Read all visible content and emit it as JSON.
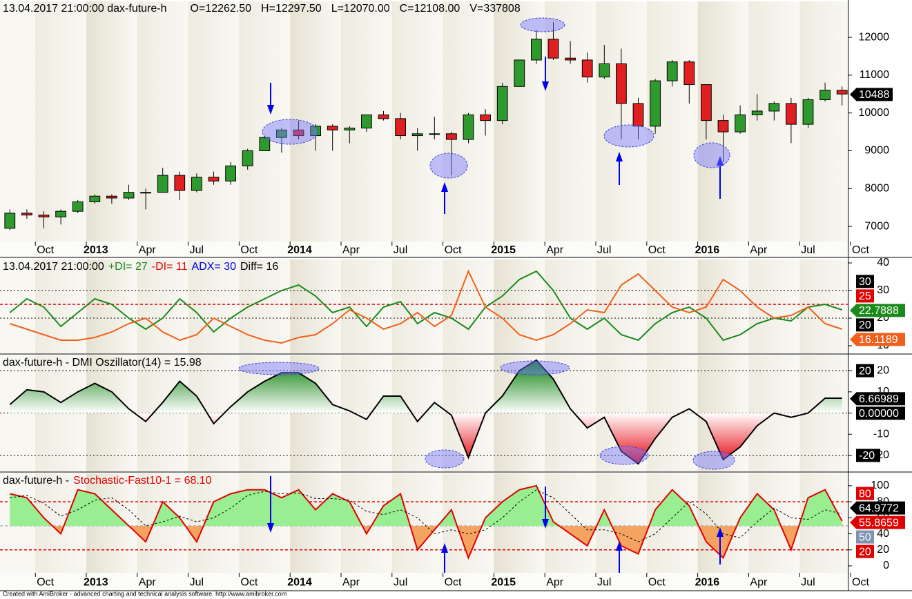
{
  "footer": "Created with AmiBroker - advanced charting and technical analysis software. http://www.amibroker.com",
  "chart_data": [
    {
      "type": "candlestick",
      "title": "13.04.2017 21:00:00 dax-future-h",
      "annotations": [
        "O=12262.50",
        "H=12297.50",
        "L=12070.00",
        "C=12108.00",
        "V=337808"
      ],
      "x": [
        "2012-08",
        "2012-09",
        "2012-10",
        "2012-11",
        "2012-12",
        "2013-01",
        "2013-02",
        "2013-03",
        "2013-04",
        "2013-05",
        "2013-06",
        "2013-07",
        "2013-08",
        "2013-09",
        "2013-10",
        "2013-11",
        "2013-12",
        "2014-01",
        "2014-02",
        "2014-03",
        "2014-04",
        "2014-05",
        "2014-06",
        "2014-07",
        "2014-08",
        "2014-09",
        "2014-10",
        "2014-11",
        "2014-12",
        "2015-01",
        "2015-02",
        "2015-03",
        "2015-04",
        "2015-05",
        "2015-06",
        "2015-07",
        "2015-08",
        "2015-09",
        "2015-10",
        "2015-11",
        "2015-12",
        "2016-01",
        "2016-02",
        "2016-03",
        "2016-04",
        "2016-05",
        "2016-06",
        "2016-07",
        "2016-08",
        "2016-09"
      ],
      "open": [
        6950,
        7350,
        7300,
        7250,
        7400,
        7650,
        7800,
        7750,
        7900,
        7900,
        8350,
        7950,
        8300,
        8200,
        8600,
        9000,
        9350,
        9550,
        9400,
        9650,
        9550,
        9600,
        9950,
        9850,
        9400,
        9450,
        9450,
        9300,
        9950,
        9800,
        10700,
        11400,
        11950,
        11450,
        11400,
        10950,
        11300,
        10250,
        9650,
        10850,
        11350,
        10750,
        9800,
        9500,
        9950,
        10050,
        10250,
        9700,
        10350,
        10600
      ],
      "high": [
        7450,
        7450,
        7400,
        7450,
        7700,
        7850,
        7850,
        8100,
        8000,
        8550,
        8450,
        8400,
        8450,
        8700,
        9050,
        9400,
        9600,
        9800,
        9700,
        9700,
        9650,
        9950,
        10050,
        10000,
        9600,
        9900,
        9500,
        10000,
        10100,
        10800,
        11400,
        12200,
        12400,
        11900,
        11600,
        11800,
        11700,
        10400,
        10900,
        11400,
        11400,
        10750,
        9950,
        10200,
        10500,
        10300,
        10400,
        10400,
        10800,
        10700
      ],
      "low": [
        6900,
        7200,
        6950,
        7050,
        7350,
        7600,
        7600,
        7700,
        7450,
        7900,
        7700,
        7900,
        8100,
        8100,
        8500,
        9000,
        8950,
        9300,
        9000,
        9000,
        9200,
        9500,
        9800,
        9300,
        9000,
        9300,
        8350,
        9200,
        9400,
        9700,
        10700,
        11300,
        11400,
        11300,
        10800,
        10900,
        9300,
        9300,
        9450,
        10700,
        10250,
        9300,
        8700,
        9450,
        9800,
        9800,
        9200,
        9600,
        10300,
        10200
      ],
      "close": [
        7350,
        7300,
        7250,
        7400,
        7650,
        7800,
        7750,
        7900,
        7900,
        8350,
        7950,
        8300,
        8200,
        8600,
        9000,
        9350,
        9550,
        9400,
        9650,
        9550,
        9600,
        9950,
        9850,
        9400,
        9450,
        9450,
        9300,
        9950,
        9800,
        10700,
        11400,
        11950,
        11450,
        11400,
        10950,
        11300,
        10250,
        9650,
        10850,
        11350,
        10750,
        9800,
        9500,
        9950,
        10050,
        10250,
        9700,
        10350,
        10600,
        10500
      ],
      "up_color": "#2e9a2e",
      "down_color": "#e02020",
      "xlim": [
        "2012-08",
        "2016-10"
      ],
      "xticks": [
        {
          "value": "2012-10",
          "label": "Oct"
        },
        {
          "value": "2013-01",
          "label": "2013"
        },
        {
          "value": "2013-04",
          "label": "Apr"
        },
        {
          "value": "2013-07",
          "label": "Jul"
        },
        {
          "value": "2013-10",
          "label": "Oct"
        },
        {
          "value": "2014-01",
          "label": "2014"
        },
        {
          "value": "2014-04",
          "label": "Apr"
        },
        {
          "value": "2014-07",
          "label": "Jul"
        },
        {
          "value": "2014-10",
          "label": "Oct"
        },
        {
          "value": "2015-01",
          "label": "2015"
        },
        {
          "value": "2015-04",
          "label": "Apr"
        },
        {
          "value": "2015-07",
          "label": "Jul"
        },
        {
          "value": "2015-10",
          "label": "Oct"
        },
        {
          "value": "2016-01",
          "label": "2016"
        },
        {
          "value": "2016-04",
          "label": "Apr"
        },
        {
          "value": "2016-07",
          "label": "Jul"
        },
        {
          "value": "2016-10",
          "label": "Oct"
        }
      ],
      "ylim": [
        6600,
        12950
      ],
      "yticks": [
        7000,
        8000,
        9000,
        10000,
        11000,
        12000
      ],
      "last_values": [
        10488
      ],
      "last_value_colors": [
        "#000000"
      ]
    },
    {
      "type": "line",
      "title": "13.04.2017 21:00:00",
      "legend": [
        "+DI= 27",
        "-DI= 11",
        "ADX= 30",
        "Diff= 16"
      ],
      "legend_colors": [
        "#1a8a1a",
        "#e00000",
        "#0000e0",
        "#000000"
      ],
      "x": [
        "2012-08",
        "2012-09",
        "2012-10",
        "2012-11",
        "2012-12",
        "2013-01",
        "2013-02",
        "2013-03",
        "2013-04",
        "2013-05",
        "2013-06",
        "2013-07",
        "2013-08",
        "2013-09",
        "2013-10",
        "2013-11",
        "2013-12",
        "2014-01",
        "2014-02",
        "2014-03",
        "2014-04",
        "2014-05",
        "2014-06",
        "2014-07",
        "2014-08",
        "2014-09",
        "2014-10",
        "2014-11",
        "2014-12",
        "2015-01",
        "2015-02",
        "2015-03",
        "2015-04",
        "2015-05",
        "2015-06",
        "2015-07",
        "2015-08",
        "2015-09",
        "2015-10",
        "2015-11",
        "2015-12",
        "2016-01",
        "2016-02",
        "2016-03",
        "2016-04",
        "2016-05",
        "2016-06",
        "2016-07",
        "2016-08",
        "2016-09"
      ],
      "xlim": [
        "2012-08",
        "2016-10"
      ],
      "series": [
        {
          "color": "#1a8a1a",
          "values": [
            22,
            27,
            24,
            17,
            22,
            27,
            25,
            20,
            16,
            20,
            27,
            22,
            15,
            20,
            24,
            27,
            30,
            32,
            28,
            22,
            24,
            17,
            24,
            26,
            18,
            22,
            20,
            16,
            24,
            28,
            34,
            37,
            30,
            20,
            16,
            20,
            14,
            12,
            18,
            22,
            24,
            20,
            12,
            14,
            18,
            20,
            19,
            24,
            25,
            23
          ]
        },
        {
          "color": "#f0601c",
          "values": [
            18,
            16,
            14,
            12,
            12,
            13,
            15,
            18,
            20,
            15,
            12,
            14,
            20,
            17,
            14,
            12,
            11,
            13,
            14,
            18,
            23,
            20,
            16,
            18,
            22,
            17,
            21,
            37,
            24,
            20,
            14,
            12,
            14,
            18,
            23,
            22,
            32,
            36,
            30,
            24,
            22,
            24,
            34,
            30,
            24,
            20,
            21,
            24,
            18,
            16
          ]
        }
      ],
      "ylim": [
        7.25,
        41.25
      ],
      "yticks": [
        10,
        20,
        30,
        40
      ],
      "levels": [
        30,
        25,
        20
      ],
      "level_colors": [
        "#000000",
        "#e00000",
        "#000000"
      ],
      "last_values": [
        22.7888,
        16.1189
      ],
      "last_value_colors": [
        "#1a8a1a",
        "#f0601c"
      ]
    },
    {
      "type": "area",
      "title": "dax-future-h - DMI Oszillator(14) = 15.98",
      "x": [
        "2012-08",
        "2012-09",
        "2012-10",
        "2012-11",
        "2012-12",
        "2013-01",
        "2013-02",
        "2013-03",
        "2013-04",
        "2013-05",
        "2013-06",
        "2013-07",
        "2013-08",
        "2013-09",
        "2013-10",
        "2013-11",
        "2013-12",
        "2014-01",
        "2014-02",
        "2014-03",
        "2014-04",
        "2014-05",
        "2014-06",
        "2014-07",
        "2014-08",
        "2014-09",
        "2014-10",
        "2014-11",
        "2014-12",
        "2015-01",
        "2015-02",
        "2015-03",
        "2015-04",
        "2015-05",
        "2015-06",
        "2015-07",
        "2015-08",
        "2015-09",
        "2015-10",
        "2015-11",
        "2015-12",
        "2016-01",
        "2016-02",
        "2016-03",
        "2016-04",
        "2016-05",
        "2016-06",
        "2016-07",
        "2016-08",
        "2016-09"
      ],
      "xlim": [
        "2012-08",
        "2016-10"
      ],
      "series": [
        {
          "color": "#000000",
          "values": [
            4,
            11,
            10,
            5,
            10,
            14,
            10,
            2,
            -4,
            5,
            15,
            8,
            -5,
            3,
            10,
            15,
            19,
            19,
            14,
            4,
            1,
            -3,
            8,
            8,
            -4,
            5,
            -1,
            -21,
            0,
            8,
            20,
            25,
            16,
            2,
            -7,
            -2,
            -18,
            -24,
            -12,
            -2,
            2,
            -4,
            -22,
            -16,
            -6,
            0,
            -2,
            0,
            7,
            7
          ]
        }
      ],
      "fill_level": 0,
      "fill_colors": [
        "#1e8a1e",
        "#e8101a"
      ],
      "fill_gradient": true,
      "ylim": [
        -27.5,
        27.2
      ],
      "yticks": [
        -20,
        -10,
        0,
        10,
        20
      ],
      "levels": [
        20,
        {
          "value": 0,
          "label": "0.00000"
        },
        -20
      ],
      "level_colors": [
        "#000000",
        "#000000",
        "#000000"
      ],
      "last_values": [
        6.66989
      ],
      "last_value_colors": [
        "#000000"
      ]
    },
    {
      "type": "line",
      "title": "dax-future-h -",
      "legend": [
        "Stochastic-Fast10-1 = 68.10"
      ],
      "legend_colors": [
        "#e00000"
      ],
      "x": [
        "2012-08",
        "2012-09",
        "2012-10",
        "2012-11",
        "2012-12",
        "2013-01",
        "2013-02",
        "2013-03",
        "2013-04",
        "2013-05",
        "2013-06",
        "2013-07",
        "2013-08",
        "2013-09",
        "2013-10",
        "2013-11",
        "2013-12",
        "2014-01",
        "2014-02",
        "2014-03",
        "2014-04",
        "2014-05",
        "2014-06",
        "2014-07",
        "2014-08",
        "2014-09",
        "2014-10",
        "2014-11",
        "2014-12",
        "2015-01",
        "2015-02",
        "2015-03",
        "2015-04",
        "2015-05",
        "2015-06",
        "2015-07",
        "2015-08",
        "2015-09",
        "2015-10",
        "2015-11",
        "2015-12",
        "2016-01",
        "2016-02",
        "2016-03",
        "2016-04",
        "2016-05",
        "2016-06",
        "2016-07",
        "2016-08",
        "2016-09"
      ],
      "xlim": [
        "2012-08",
        "2016-10"
      ],
      "xticks": [
        {
          "value": "2012-10",
          "label": "Oct"
        },
        {
          "value": "2013-01",
          "label": "2013"
        },
        {
          "value": "2013-04",
          "label": "Apr"
        },
        {
          "value": "2013-07",
          "label": "Jul"
        },
        {
          "value": "2013-10",
          "label": "Oct"
        },
        {
          "value": "2014-01",
          "label": "2014"
        },
        {
          "value": "2014-04",
          "label": "Apr"
        },
        {
          "value": "2014-07",
          "label": "Jul"
        },
        {
          "value": "2014-10",
          "label": "Oct"
        },
        {
          "value": "2015-01",
          "label": "2015"
        },
        {
          "value": "2015-04",
          "label": "Apr"
        },
        {
          "value": "2015-07",
          "label": "Jul"
        },
        {
          "value": "2015-10",
          "label": "Oct"
        },
        {
          "value": "2016-01",
          "label": "2016"
        },
        {
          "value": "2016-04",
          "label": "Apr"
        },
        {
          "value": "2016-07",
          "label": "Jul"
        },
        {
          "value": "2016-10",
          "label": "Oct"
        }
      ],
      "series": [
        {
          "color": "#e00000",
          "values": [
            90,
            85,
            60,
            40,
            95,
            90,
            70,
            50,
            30,
            80,
            60,
            30,
            80,
            90,
            95,
            95,
            85,
            95,
            70,
            90,
            80,
            40,
            75,
            90,
            20,
            45,
            70,
            10,
            60,
            80,
            95,
            100,
            55,
            40,
            25,
            70,
            25,
            15,
            70,
            95,
            75,
            30,
            10,
            60,
            90,
            70,
            20,
            85,
            95,
            56
          ]
        },
        {
          "color": "#000000",
          "style": "dashed",
          "values": [
            85,
            88,
            78,
            62,
            70,
            82,
            85,
            70,
            50,
            55,
            62,
            55,
            60,
            72,
            88,
            93,
            90,
            91,
            84,
            84,
            82,
            68,
            64,
            70,
            60,
            40,
            45,
            40,
            45,
            60,
            80,
            95,
            85,
            65,
            45,
            45,
            40,
            30,
            40,
            60,
            80,
            65,
            40,
            35,
            55,
            72,
            60,
            58,
            70,
            65
          ]
        }
      ],
      "fill_level": 50,
      "fill_colors": [
        "#98ee90",
        "#f4a460"
      ],
      "fill_gradient": false,
      "ylim": [
        -8.6,
        115.4
      ],
      "yticks": [
        0,
        20,
        40,
        60,
        80,
        100
      ],
      "levels": [
        80,
        50,
        20
      ],
      "level_colors": [
        "#e00000",
        "#7f93b0",
        "#e00000"
      ],
      "last_values": [
        55.8659,
        64.9772
      ],
      "last_value_colors": [
        "#e00000",
        "#000000"
      ]
    }
  ]
}
